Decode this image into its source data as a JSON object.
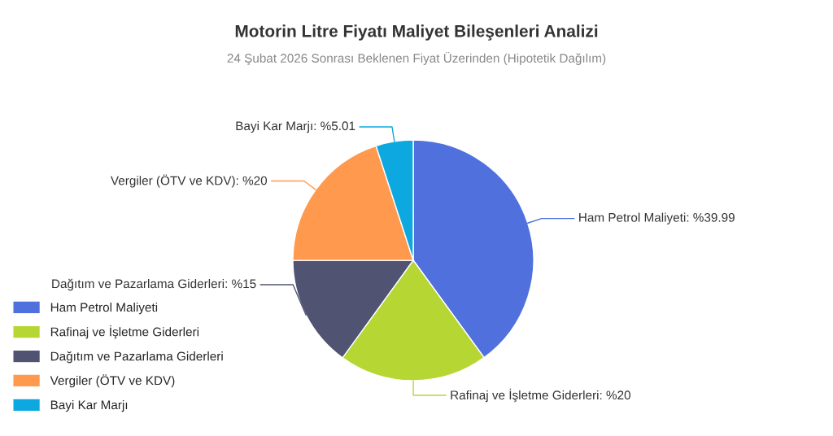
{
  "chart_data": {
    "type": "pie",
    "title": "Motorin Litre Fiyatı Maliyet Bileşenleri Analizi",
    "subtitle": "24 Şubat 2026 Sonrası Beklenen Fiyat Üzerinden (Hipotetik Dağılım)",
    "categories": [
      "Ham Petrol Maliyeti",
      "Rafinaj ve İşletme Giderleri",
      "Dağıtım ve Pazarlama Giderleri",
      "Vergiler (ÖTV ve KDV)",
      "Bayi Kar Marjı"
    ],
    "values": [
      39.99,
      20,
      15,
      20,
      5.01
    ],
    "colors": [
      "#5070dd",
      "#b6d634",
      "#505372",
      "#ff994d",
      "#0ca8df"
    ],
    "value_labels": [
      "Ham Petrol Maliyeti: %39.99",
      "Rafinaj ve İşletme Giderleri: %20",
      "Dağıtım ve Pazarlama Giderleri: %15",
      "Vergiler (ÖTV ve KDV): %20",
      "Bayi Kar Marjı: %5.01"
    ],
    "legend": "bottom left"
  }
}
